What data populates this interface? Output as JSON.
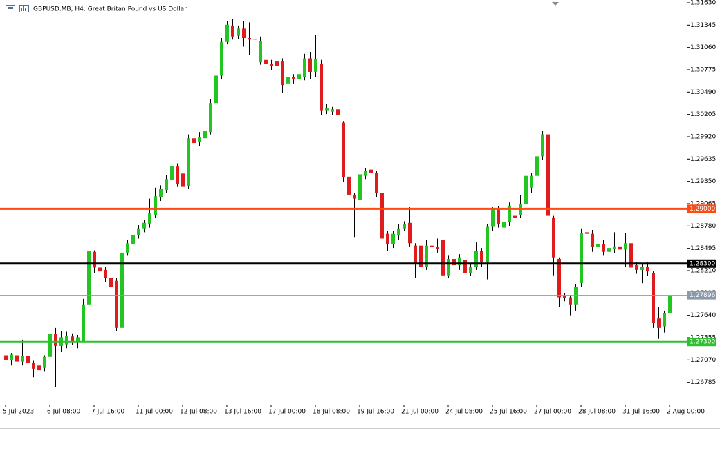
{
  "chart_data": {
    "type": "candlestick",
    "title": "GBPUSD.MB, H4:  Great Britan Pound vs US Dollar",
    "categories": [
      "5 Jul 2023",
      null,
      null,
      null,
      null,
      null,
      null,
      null,
      "6 Jul 08:00",
      null,
      null,
      null,
      null,
      null,
      null,
      null,
      "7 Jul 16:00",
      null,
      null,
      null,
      null,
      null,
      null,
      null,
      "11 Jul 00:00",
      null,
      null,
      null,
      null,
      null,
      null,
      null,
      "12 Jul 08:00",
      null,
      null,
      null,
      null,
      null,
      null,
      null,
      "13 Jul 16:00",
      null,
      null,
      null,
      null,
      null,
      null,
      null,
      "17 Jul 00:00",
      null,
      null,
      null,
      null,
      null,
      null,
      null,
      "18 Jul 08:00",
      null,
      null,
      null,
      null,
      null,
      null,
      null,
      "19 Jul 16:00",
      null,
      null,
      null,
      null,
      null,
      null,
      null,
      "21 Jul 00:00",
      null,
      null,
      null,
      null,
      null,
      null,
      null,
      "24 Jul 08:00",
      null,
      null,
      null,
      null,
      null,
      null,
      null,
      "25 Jul 16:00",
      null,
      null,
      null,
      null,
      null,
      null,
      null,
      "27 Jul 00:00",
      null,
      null,
      null,
      null,
      null,
      null,
      null,
      "28 Jul 08:00",
      null,
      null,
      null,
      null,
      null,
      null,
      null,
      "31 Jul 16:00",
      null,
      null,
      null,
      null,
      null,
      null,
      null,
      "2 Aug 00:00"
    ],
    "open": [
      1.2713,
      1.2707,
      1.2713,
      1.2705,
      1.2712,
      1.2703,
      1.27,
      1.2697,
      1.2711,
      1.274,
      1.2725,
      1.2727,
      1.2737,
      1.273,
      1.2731,
      1.2778,
      1.2845,
      1.2825,
      1.2822,
      1.2812,
      1.2808,
      1.2748,
      1.2844,
      1.2855,
      1.2866,
      1.2875,
      1.2881,
      1.2892,
      1.2915,
      1.2924,
      1.2937,
      1.2954,
      1.2945,
      1.2929,
      1.299,
      1.2985,
      1.299,
      1.2998,
      1.3035,
      1.307,
      1.3113,
      1.3134,
      1.3121,
      1.313,
      1.3118,
      1.3117,
      1.3087,
      1.309,
      1.3085,
      1.3088,
      1.3088,
      1.306,
      1.3068,
      1.3066,
      1.3068,
      1.3092,
      1.3075,
      1.3085,
      1.3025,
      1.3024,
      1.3027,
      1.301,
      1.2941,
      1.2918,
      1.2911,
      1.2942,
      1.295,
      1.2946,
      1.292,
      1.2868,
      1.2855,
      1.2866,
      1.2875,
      1.2882,
      1.2853,
      1.2853,
      1.2826,
      1.2853,
      1.2851,
      1.286,
      1.2815,
      1.2836,
      1.2828,
      1.2835,
      1.2818,
      1.2826,
      1.2846,
      1.2832,
      1.2877,
      1.2899,
      1.2876,
      1.2883,
      1.2891,
      1.2892,
      1.2906,
      1.2927,
      1.2942,
      1.2967,
      1.2995,
      1.2889,
      1.2836,
      1.2789,
      1.2787,
      1.2778,
      1.2805,
      1.287,
      1.2868,
      1.2851,
      1.2855,
      1.2845,
      1.2849,
      1.2852,
      1.2848,
      1.2856,
      1.2828,
      1.2822,
      1.2826,
      1.2818,
      1.276,
      1.275,
      1.2767
    ],
    "high": [
      1.2714,
      1.2716,
      1.2717,
      1.2733,
      1.2716,
      1.2706,
      1.2703,
      1.2713,
      1.2762,
      1.2748,
      1.2744,
      1.2743,
      1.2741,
      1.2739,
      1.2785,
      1.2847,
      1.2847,
      1.2835,
      1.2826,
      1.2818,
      1.2812,
      1.2847,
      1.286,
      1.287,
      1.2879,
      1.2886,
      1.2913,
      1.2927,
      1.293,
      1.2943,
      1.296,
      1.2958,
      1.296,
      1.2995,
      1.2994,
      1.2998,
      1.3012,
      1.304,
      1.3077,
      1.3118,
      1.314,
      1.3142,
      1.3134,
      1.314,
      1.3138,
      1.312,
      1.312,
      1.3095,
      1.309,
      1.3091,
      1.3092,
      1.3072,
      1.3072,
      1.3081,
      1.3098,
      1.31,
      1.3122,
      1.309,
      1.3034,
      1.303,
      1.303,
      1.3012,
      1.2945,
      1.292,
      1.295,
      1.2952,
      1.2962,
      1.2948,
      1.2922,
      1.2872,
      1.2872,
      1.288,
      1.2884,
      1.2902,
      1.2856,
      1.2856,
      1.286,
      1.2856,
      1.2862,
      1.2876,
      1.284,
      1.284,
      1.2842,
      1.2838,
      1.283,
      1.2857,
      1.285,
      1.288,
      1.2902,
      1.2903,
      1.2887,
      1.2908,
      1.2905,
      1.2918,
      1.2945,
      1.2946,
      1.297,
      1.2999,
      1.2999,
      1.2891,
      1.2838,
      1.2792,
      1.279,
      1.2804,
      1.2875,
      1.2885,
      1.2873,
      1.286,
      1.286,
      1.2855,
      1.287,
      1.2867,
      1.2869,
      1.286,
      1.2832,
      1.283,
      1.2832,
      1.282,
      1.2775,
      1.277,
      1.2795
    ],
    "low": [
      1.2703,
      1.27,
      1.2689,
      1.27,
      1.2697,
      1.2685,
      1.2687,
      1.2692,
      1.2708,
      1.2672,
      1.2717,
      1.2722,
      1.2726,
      1.2722,
      1.2729,
      1.2772,
      1.2818,
      1.2814,
      1.2806,
      1.2796,
      1.2744,
      1.2745,
      1.284,
      1.285,
      1.2862,
      1.287,
      1.2876,
      1.2888,
      1.291,
      1.292,
      1.2933,
      1.2928,
      1.2902,
      1.2925,
      1.2978,
      1.298,
      1.2985,
      1.2995,
      1.303,
      1.3066,
      1.311,
      1.3116,
      1.3117,
      1.3107,
      1.3096,
      1.3086,
      1.3084,
      1.3075,
      1.3077,
      1.3072,
      1.3048,
      1.3046,
      1.306,
      1.306,
      1.3064,
      1.3066,
      1.3068,
      1.302,
      1.3021,
      1.302,
      1.3015,
      1.2934,
      1.29,
      1.2864,
      1.2908,
      1.2938,
      1.294,
      1.2915,
      1.2858,
      1.2846,
      1.285,
      1.286,
      1.2872,
      1.2852,
      1.2812,
      1.282,
      1.2822,
      1.284,
      1.2844,
      1.2806,
      1.2812,
      1.28,
      1.2822,
      1.2808,
      1.2814,
      1.2822,
      1.2826,
      1.281,
      1.2872,
      1.2876,
      1.2872,
      1.2878,
      1.2885,
      1.2888,
      1.29,
      1.292,
      1.2938,
      1.2962,
      1.288,
      1.2815,
      1.2775,
      1.2782,
      1.2764,
      1.277,
      1.28,
      1.2864,
      1.2845,
      1.2847,
      1.284,
      1.2838,
      1.2843,
      1.2841,
      1.2826,
      1.282,
      1.2817,
      1.2805,
      1.2814,
      1.2748,
      1.2734,
      1.2742,
      1.2762
    ],
    "close": [
      1.2707,
      1.2714,
      1.2705,
      1.2712,
      1.2703,
      1.2696,
      1.2694,
      1.2711,
      1.274,
      1.2725,
      1.2736,
      1.2738,
      1.273,
      1.2736,
      1.2778,
      1.2846,
      1.2825,
      1.282,
      1.2812,
      1.28,
      1.2748,
      1.2844,
      1.2856,
      1.2866,
      1.2875,
      1.2882,
      1.2894,
      1.2916,
      1.2925,
      1.2938,
      1.2955,
      1.2932,
      1.2928,
      1.299,
      1.2984,
      1.2992,
      1.2999,
      1.3035,
      1.307,
      1.3113,
      1.3135,
      1.312,
      1.313,
      1.3118,
      1.3116,
      1.3116,
      1.3114,
      1.3085,
      1.3082,
      1.3082,
      1.3058,
      1.3068,
      1.3066,
      1.3072,
      1.3092,
      1.3074,
      1.3091,
      1.3025,
      1.3028,
      1.3027,
      1.302,
      1.294,
      1.2918,
      1.2913,
      1.2944,
      1.2948,
      1.2946,
      1.292,
      1.2862,
      1.2855,
      1.2868,
      1.2875,
      1.288,
      1.2856,
      1.283,
      1.2826,
      1.2853,
      1.2851,
      1.2849,
      1.2815,
      1.2836,
      1.2828,
      1.2838,
      1.2818,
      1.2826,
      1.2846,
      1.2832,
      1.2877,
      1.2899,
      1.288,
      1.2883,
      1.2904,
      1.2888,
      1.2906,
      1.2942,
      1.2942,
      1.2967,
      1.2995,
      1.2891,
      1.2838,
      1.2787,
      1.2786,
      1.2778,
      1.28,
      1.2869,
      1.2868,
      1.2851,
      1.2855,
      1.2845,
      1.285,
      1.2852,
      1.2848,
      1.2856,
      1.2825,
      1.2822,
      1.2826,
      1.282,
      1.2754,
      1.2748,
      1.2767,
      1.27896
    ],
    "up_color": "#22c522",
    "down_color": "#e01b1b",
    "wick_color": "#000000",
    "ylim": [
      1.265,
      1.31665
    ],
    "yticks": [
      {
        "value": 1.3163,
        "label": "1.31630"
      },
      {
        "value": 1.31345,
        "label": "1.31345"
      },
      {
        "value": 1.3106,
        "label": "1.31060"
      },
      {
        "value": 1.30775,
        "label": "1.30775"
      },
      {
        "value": 1.3049,
        "label": "1.30490"
      },
      {
        "value": 1.30205,
        "label": "1.30205"
      },
      {
        "value": 1.2992,
        "label": "1.29920"
      },
      {
        "value": 1.29635,
        "label": "1.29635"
      },
      {
        "value": 1.2935,
        "label": "1.29350"
      },
      {
        "value": 1.29065,
        "label": "1.29065"
      },
      {
        "value": 1.2878,
        "label": "1.28780"
      },
      {
        "value": 1.28495,
        "label": "1.28495"
      },
      {
        "value": 1.2821,
        "label": "1.28210"
      },
      {
        "value": 1.27925,
        "label": "1.27925"
      },
      {
        "value": 1.2764,
        "label": "1.27640"
      },
      {
        "value": 1.27355,
        "label": "1.27355"
      },
      {
        "value": 1.2707,
        "label": "1.27070"
      },
      {
        "value": 1.26785,
        "label": "1.26785"
      }
    ],
    "levels": [
      {
        "value": 1.29,
        "label": "1.29000",
        "color": "#ff4a12"
      },
      {
        "value": 1.283,
        "label": "1.28300",
        "color": "#000000"
      },
      {
        "value": 1.27896,
        "label": "1.27896",
        "color": "#8a9aab"
      },
      {
        "value": 1.273,
        "label": "1.27300",
        "color": "#2fbf2f"
      }
    ]
  }
}
